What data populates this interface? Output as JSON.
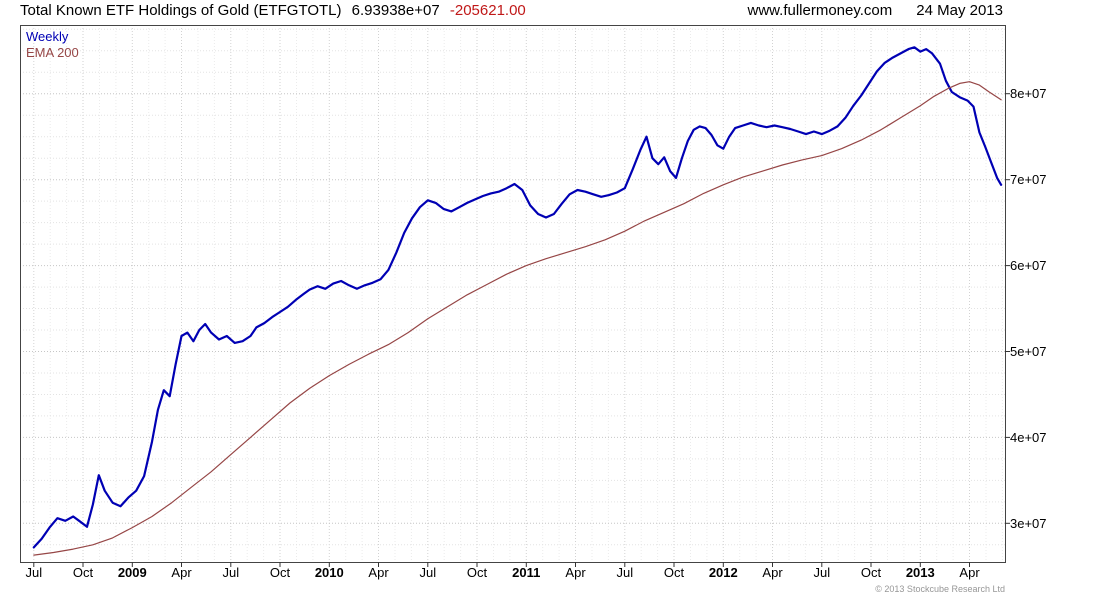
{
  "header": {
    "title": "Total Known ETF Holdings of Gold (ETFGTOTL)",
    "last_value": "6.93938e+07",
    "change": "-205621.00",
    "site": "www.fullermoney.com",
    "date": "24 May 2013"
  },
  "legend": {
    "series1_label": "Weekly",
    "series2_label": "EMA 200"
  },
  "footer": {
    "copyright": "© 2013 Stockcube Research Ltd"
  },
  "colors": {
    "weekly_line": "#0000b4",
    "ema_line": "#964646",
    "change_text": "#c01818",
    "frame": "#444444"
  },
  "chart_data": {
    "type": "line",
    "title": "Total Known ETF Holdings of Gold (ETFGTOTL)",
    "subtitle_note": "Weekly series with EMA 200 overlay, last value 6.93938e+07, change -205621.00",
    "y_scale": 10000000,
    "xlim": [
      2008.43,
      2013.43
    ],
    "ylim": [
      2.55,
      8.8
    ],
    "grid": {
      "minor_h_color": "#e3e3e3",
      "major_h_color": "#c6c6c6",
      "month_v_color": "#ebebeb",
      "quarter_v_color": "#d2d2d2"
    },
    "legend_position": "top-left",
    "y_ticks": [
      {
        "v": 3,
        "label": "3e+07"
      },
      {
        "v": 4,
        "label": "4e+07"
      },
      {
        "v": 5,
        "label": "5e+07"
      },
      {
        "v": 6,
        "label": "6e+07"
      },
      {
        "v": 7,
        "label": "7e+07"
      },
      {
        "v": 8,
        "label": "8e+07"
      }
    ],
    "x_ticks": [
      {
        "v": 2008.5,
        "label": "Jul",
        "bold": false
      },
      {
        "v": 2008.75,
        "label": "Oct",
        "bold": false
      },
      {
        "v": 2009.0,
        "label": "2009",
        "bold": true
      },
      {
        "v": 2009.25,
        "label": "Apr",
        "bold": false
      },
      {
        "v": 2009.5,
        "label": "Jul",
        "bold": false
      },
      {
        "v": 2009.75,
        "label": "Oct",
        "bold": false
      },
      {
        "v": 2010.0,
        "label": "2010",
        "bold": true
      },
      {
        "v": 2010.25,
        "label": "Apr",
        "bold": false
      },
      {
        "v": 2010.5,
        "label": "Jul",
        "bold": false
      },
      {
        "v": 2010.75,
        "label": "Oct",
        "bold": false
      },
      {
        "v": 2011.0,
        "label": "2011",
        "bold": true
      },
      {
        "v": 2011.25,
        "label": "Apr",
        "bold": false
      },
      {
        "v": 2011.5,
        "label": "Jul",
        "bold": false
      },
      {
        "v": 2011.75,
        "label": "Oct",
        "bold": false
      },
      {
        "v": 2012.0,
        "label": "2012",
        "bold": true
      },
      {
        "v": 2012.25,
        "label": "Apr",
        "bold": false
      },
      {
        "v": 2012.5,
        "label": "Jul",
        "bold": false
      },
      {
        "v": 2012.75,
        "label": "Oct",
        "bold": false
      },
      {
        "v": 2013.0,
        "label": "2013",
        "bold": true
      },
      {
        "v": 2013.25,
        "label": "Apr",
        "bold": false
      }
    ],
    "series": [
      {
        "name": "Weekly",
        "data_name": "weekly-line",
        "color": "#0000b4",
        "width": 2.2,
        "points": [
          [
            2008.5,
            2.72
          ],
          [
            2008.54,
            2.82
          ],
          [
            2008.58,
            2.95
          ],
          [
            2008.62,
            3.06
          ],
          [
            2008.66,
            3.03
          ],
          [
            2008.7,
            3.08
          ],
          [
            2008.73,
            3.03
          ],
          [
            2008.77,
            2.96
          ],
          [
            2008.8,
            3.22
          ],
          [
            2008.83,
            3.56
          ],
          [
            2008.86,
            3.38
          ],
          [
            2008.9,
            3.24
          ],
          [
            2008.94,
            3.2
          ],
          [
            2008.98,
            3.3
          ],
          [
            2009.02,
            3.38
          ],
          [
            2009.06,
            3.55
          ],
          [
            2009.1,
            3.95
          ],
          [
            2009.13,
            4.32
          ],
          [
            2009.16,
            4.55
          ],
          [
            2009.19,
            4.48
          ],
          [
            2009.22,
            4.85
          ],
          [
            2009.25,
            5.18
          ],
          [
            2009.28,
            5.22
          ],
          [
            2009.31,
            5.12
          ],
          [
            2009.34,
            5.25
          ],
          [
            2009.37,
            5.32
          ],
          [
            2009.4,
            5.22
          ],
          [
            2009.44,
            5.14
          ],
          [
            2009.48,
            5.18
          ],
          [
            2009.52,
            5.1
          ],
          [
            2009.56,
            5.12
          ],
          [
            2009.6,
            5.18
          ],
          [
            2009.63,
            5.28
          ],
          [
            2009.67,
            5.33
          ],
          [
            2009.71,
            5.4
          ],
          [
            2009.75,
            5.46
          ],
          [
            2009.79,
            5.52
          ],
          [
            2009.83,
            5.6
          ],
          [
            2009.87,
            5.67
          ],
          [
            2009.9,
            5.72
          ],
          [
            2009.94,
            5.76
          ],
          [
            2009.98,
            5.73
          ],
          [
            2010.02,
            5.79
          ],
          [
            2010.06,
            5.82
          ],
          [
            2010.1,
            5.77
          ],
          [
            2010.14,
            5.73
          ],
          [
            2010.18,
            5.77
          ],
          [
            2010.22,
            5.8
          ],
          [
            2010.26,
            5.84
          ],
          [
            2010.3,
            5.95
          ],
          [
            2010.34,
            6.15
          ],
          [
            2010.38,
            6.38
          ],
          [
            2010.42,
            6.55
          ],
          [
            2010.46,
            6.68
          ],
          [
            2010.5,
            6.76
          ],
          [
            2010.54,
            6.73
          ],
          [
            2010.58,
            6.66
          ],
          [
            2010.62,
            6.63
          ],
          [
            2010.66,
            6.68
          ],
          [
            2010.7,
            6.73
          ],
          [
            2010.74,
            6.77
          ],
          [
            2010.78,
            6.81
          ],
          [
            2010.82,
            6.84
          ],
          [
            2010.86,
            6.86
          ],
          [
            2010.9,
            6.9
          ],
          [
            2010.94,
            6.95
          ],
          [
            2010.98,
            6.88
          ],
          [
            2011.02,
            6.7
          ],
          [
            2011.06,
            6.6
          ],
          [
            2011.1,
            6.56
          ],
          [
            2011.14,
            6.6
          ],
          [
            2011.18,
            6.72
          ],
          [
            2011.22,
            6.83
          ],
          [
            2011.26,
            6.88
          ],
          [
            2011.3,
            6.86
          ],
          [
            2011.34,
            6.83
          ],
          [
            2011.38,
            6.8
          ],
          [
            2011.42,
            6.82
          ],
          [
            2011.46,
            6.85
          ],
          [
            2011.5,
            6.9
          ],
          [
            2011.54,
            7.12
          ],
          [
            2011.58,
            7.35
          ],
          [
            2011.61,
            7.5
          ],
          [
            2011.64,
            7.25
          ],
          [
            2011.67,
            7.18
          ],
          [
            2011.7,
            7.26
          ],
          [
            2011.73,
            7.1
          ],
          [
            2011.76,
            7.02
          ],
          [
            2011.79,
            7.25
          ],
          [
            2011.82,
            7.45
          ],
          [
            2011.85,
            7.58
          ],
          [
            2011.88,
            7.62
          ],
          [
            2011.91,
            7.6
          ],
          [
            2011.94,
            7.52
          ],
          [
            2011.97,
            7.4
          ],
          [
            2012.0,
            7.36
          ],
          [
            2012.03,
            7.5
          ],
          [
            2012.06,
            7.6
          ],
          [
            2012.1,
            7.63
          ],
          [
            2012.14,
            7.66
          ],
          [
            2012.18,
            7.63
          ],
          [
            2012.22,
            7.61
          ],
          [
            2012.26,
            7.63
          ],
          [
            2012.3,
            7.61
          ],
          [
            2012.34,
            7.59
          ],
          [
            2012.38,
            7.56
          ],
          [
            2012.42,
            7.53
          ],
          [
            2012.46,
            7.56
          ],
          [
            2012.5,
            7.53
          ],
          [
            2012.54,
            7.57
          ],
          [
            2012.58,
            7.62
          ],
          [
            2012.62,
            7.72
          ],
          [
            2012.66,
            7.86
          ],
          [
            2012.7,
            7.98
          ],
          [
            2012.74,
            8.12
          ],
          [
            2012.78,
            8.26
          ],
          [
            2012.82,
            8.36
          ],
          [
            2012.86,
            8.42
          ],
          [
            2012.9,
            8.47
          ],
          [
            2012.94,
            8.52
          ],
          [
            2012.97,
            8.54
          ],
          [
            2013.0,
            8.49
          ],
          [
            2013.03,
            8.52
          ],
          [
            2013.06,
            8.47
          ],
          [
            2013.1,
            8.35
          ],
          [
            2013.13,
            8.15
          ],
          [
            2013.16,
            8.02
          ],
          [
            2013.2,
            7.96
          ],
          [
            2013.24,
            7.92
          ],
          [
            2013.27,
            7.85
          ],
          [
            2013.3,
            7.55
          ],
          [
            2013.33,
            7.38
          ],
          [
            2013.36,
            7.2
          ],
          [
            2013.39,
            7.02
          ],
          [
            2013.41,
            6.94
          ]
        ]
      },
      {
        "name": "EMA 200",
        "data_name": "ema-line",
        "color": "#964646",
        "width": 1.2,
        "points": [
          [
            2008.5,
            2.63
          ],
          [
            2008.6,
            2.66
          ],
          [
            2008.7,
            2.7
          ],
          [
            2008.8,
            2.75
          ],
          [
            2008.9,
            2.83
          ],
          [
            2009.0,
            2.95
          ],
          [
            2009.1,
            3.08
          ],
          [
            2009.2,
            3.24
          ],
          [
            2009.3,
            3.42
          ],
          [
            2009.4,
            3.6
          ],
          [
            2009.5,
            3.8
          ],
          [
            2009.6,
            4.0
          ],
          [
            2009.7,
            4.2
          ],
          [
            2009.8,
            4.4
          ],
          [
            2009.9,
            4.57
          ],
          [
            2010.0,
            4.72
          ],
          [
            2010.1,
            4.85
          ],
          [
            2010.2,
            4.97
          ],
          [
            2010.3,
            5.08
          ],
          [
            2010.4,
            5.22
          ],
          [
            2010.5,
            5.38
          ],
          [
            2010.6,
            5.52
          ],
          [
            2010.7,
            5.66
          ],
          [
            2010.8,
            5.78
          ],
          [
            2010.9,
            5.9
          ],
          [
            2011.0,
            6.0
          ],
          [
            2011.1,
            6.08
          ],
          [
            2011.2,
            6.15
          ],
          [
            2011.3,
            6.22
          ],
          [
            2011.4,
            6.3
          ],
          [
            2011.5,
            6.4
          ],
          [
            2011.6,
            6.52
          ],
          [
            2011.7,
            6.62
          ],
          [
            2011.8,
            6.72
          ],
          [
            2011.9,
            6.84
          ],
          [
            2012.0,
            6.94
          ],
          [
            2012.1,
            7.03
          ],
          [
            2012.2,
            7.1
          ],
          [
            2012.3,
            7.17
          ],
          [
            2012.4,
            7.23
          ],
          [
            2012.5,
            7.28
          ],
          [
            2012.6,
            7.36
          ],
          [
            2012.7,
            7.46
          ],
          [
            2012.8,
            7.58
          ],
          [
            2012.9,
            7.72
          ],
          [
            2013.0,
            7.86
          ],
          [
            2013.07,
            7.97
          ],
          [
            2013.14,
            8.06
          ],
          [
            2013.2,
            8.12
          ],
          [
            2013.25,
            8.14
          ],
          [
            2013.3,
            8.1
          ],
          [
            2013.35,
            8.02
          ],
          [
            2013.41,
            7.93
          ]
        ]
      }
    ]
  }
}
